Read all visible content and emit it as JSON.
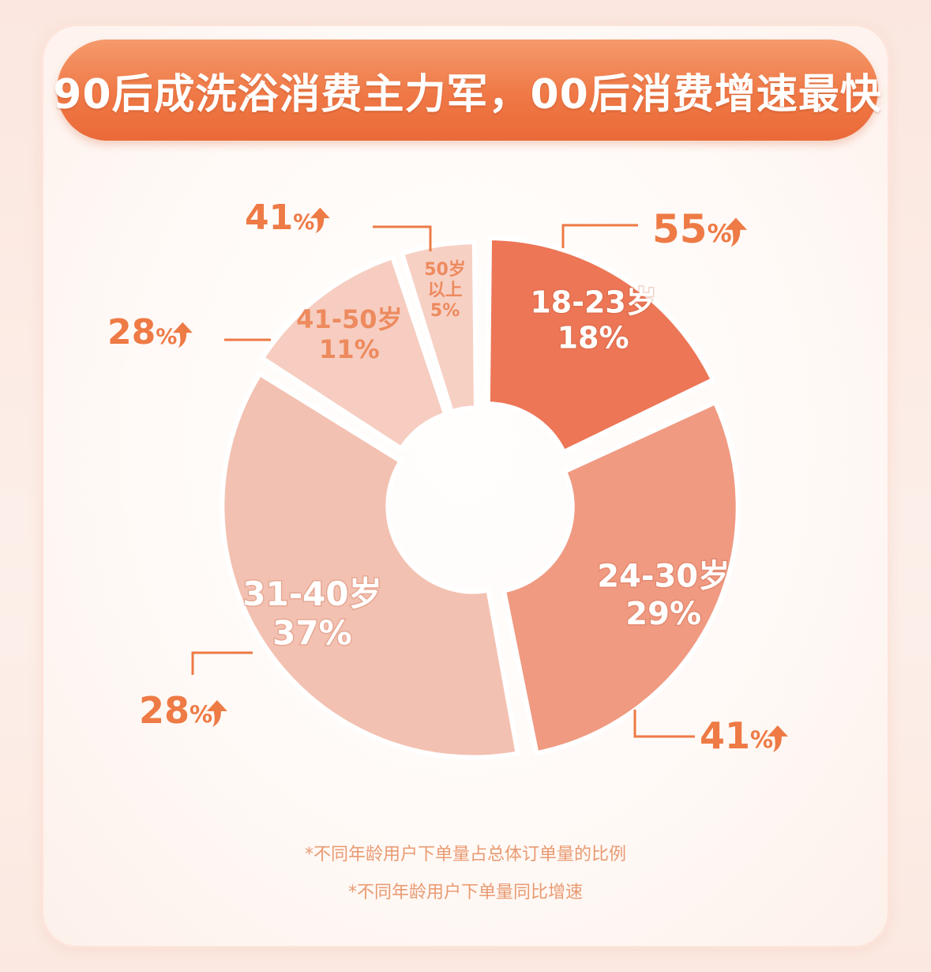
{
  "title": "90后成洗浴消费主力军，00后消费增速最快",
  "colors": {
    "accent": "#ef7a48",
    "growth_text": "#ee7a45",
    "footnote": "#e99a72"
  },
  "chart_data": {
    "type": "pie",
    "variant": "donut",
    "start_angle_deg": 0,
    "direction": "clockwise",
    "slices": [
      {
        "label": "18-23岁",
        "value": 18,
        "value_text": "18%",
        "growth": "55%",
        "color": "#ec7656",
        "text_color": "#ffffff"
      },
      {
        "label": "24-30岁",
        "value": 29,
        "value_text": "29%",
        "growth": "41%",
        "color": "#f09a82",
        "text_color": "#ffffff"
      },
      {
        "label": "31-40岁",
        "value": 37,
        "value_text": "37%",
        "growth": "28%",
        "color": "#f3c1b1",
        "text_color": "#ffffff"
      },
      {
        "label": "41-50岁",
        "value": 11,
        "value_text": "11%",
        "growth": "28%",
        "color": "#f6cdc0",
        "text_color": "#ed8a5e"
      },
      {
        "label_lines": [
          "50岁",
          "以上"
        ],
        "label": "50岁以上",
        "value": 5,
        "value_text": "5%",
        "growth": "41%",
        "color": "#f7d0c4",
        "text_color": "#ed8a5e"
      }
    ],
    "growth_unit_icon": "up-arrow-icon"
  },
  "footnotes": [
    "*不同年龄用户下单量占总体订单量的比例",
    "*不同年龄用户下单量同比增速"
  ]
}
